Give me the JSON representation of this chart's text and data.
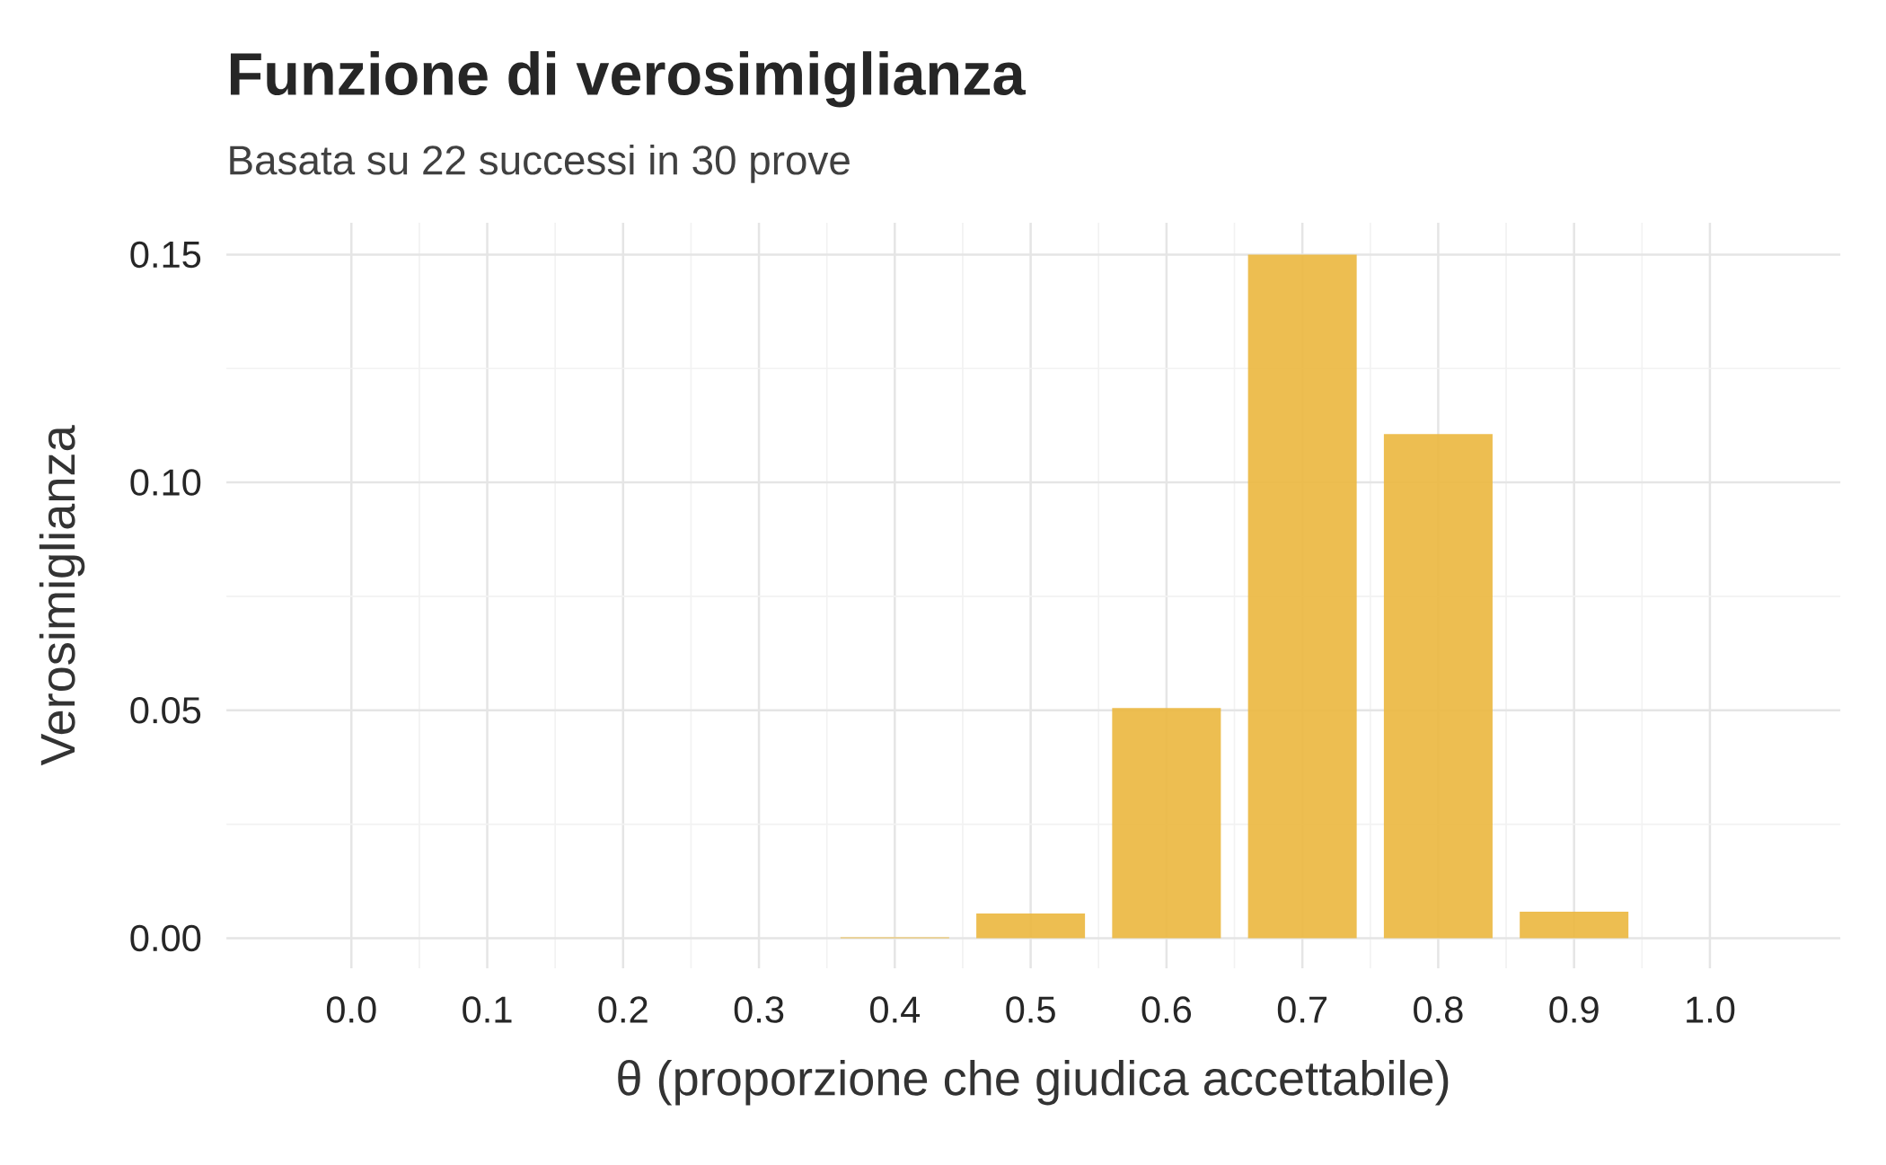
{
  "chart_data": {
    "type": "bar",
    "title": "Funzione di verosimiglianza",
    "subtitle": "Basata su 22 successi in 30 prove",
    "xlabel": "θ (proporzione che giudica accettabile)",
    "ylabel": "Verosimiglianza",
    "x": [
      0.0,
      0.1,
      0.2,
      0.3,
      0.4,
      0.5,
      0.6,
      0.7,
      0.8,
      0.9,
      1.0
    ],
    "values": [
      0,
      0,
      0,
      0,
      0.0002,
      0.0054,
      0.0505,
      0.15,
      0.1106,
      0.0058,
      0
    ],
    "color": "#ebb73e",
    "xlim": [
      -0.092,
      1.096
    ],
    "ylim": [
      -0.0066,
      0.157
    ],
    "xticks": [
      {
        "value": 0.0,
        "label": "0.0"
      },
      {
        "value": 0.1,
        "label": "0.1"
      },
      {
        "value": 0.2,
        "label": "0.2"
      },
      {
        "value": 0.3,
        "label": "0.3"
      },
      {
        "value": 0.4,
        "label": "0.4"
      },
      {
        "value": 0.5,
        "label": "0.5"
      },
      {
        "value": 0.6,
        "label": "0.6"
      },
      {
        "value": 0.7,
        "label": "0.7"
      },
      {
        "value": 0.8,
        "label": "0.8"
      },
      {
        "value": 0.9,
        "label": "0.9"
      },
      {
        "value": 1.0,
        "label": "1.0"
      }
    ],
    "yticks": [
      {
        "value": 0,
        "label": "0.00"
      },
      {
        "value": 0.05,
        "label": "0.05"
      },
      {
        "value": 0.1,
        "label": "0.10"
      },
      {
        "value": 0.15,
        "label": "0.15"
      }
    ],
    "grid": true
  }
}
